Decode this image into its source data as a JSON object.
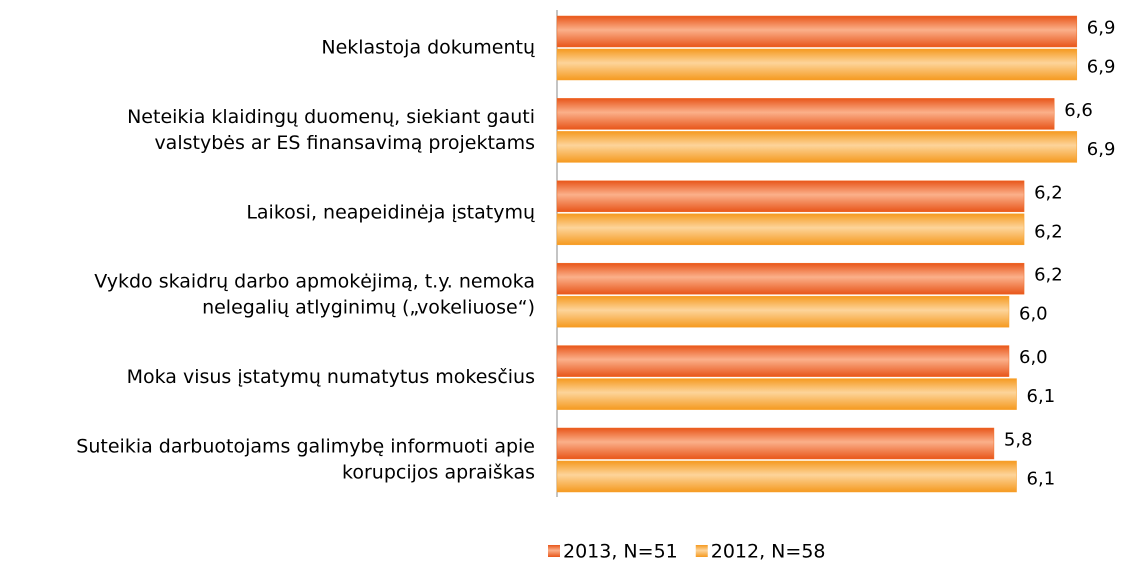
{
  "chart_data": {
    "type": "barh",
    "categories": [
      [
        "Neklastoja dokumentų"
      ],
      [
        "Neteikia klaidingų duomenų, siekiant gauti",
        "valstybės ar ES finansavimą projektams"
      ],
      [
        "Laikosi, neapeidinėja įstatymų"
      ],
      [
        "Vykdo skaidrų darbo apmokėjimą, t.y. nemoka",
        "nelegalių atlyginimų („vokeliuose“)"
      ],
      [
        "Moka visus įstatymų numatytus mokesčius"
      ],
      [
        "Suteikia darbuotojams galimybę informuoti apie",
        "korupcijos apraiškas"
      ]
    ],
    "series": [
      {
        "name": "2013, N=51",
        "color": "#f26a22",
        "values": [
          6.9,
          6.6,
          6.2,
          6.2,
          6.0,
          5.8
        ],
        "value_labels": [
          "6,9",
          "6,6",
          "6,2",
          "6,2",
          "6,0",
          "5,8"
        ]
      },
      {
        "name": "2012, N=58",
        "color": "#f9a12e",
        "values": [
          6.9,
          6.9,
          6.2,
          6.0,
          6.1,
          6.1
        ],
        "value_labels": [
          "6,9",
          "6,9",
          "6,2",
          "6,0",
          "6,1",
          "6,1"
        ]
      }
    ],
    "xlim": [
      0,
      7.5
    ],
    "legend": "bottom"
  }
}
